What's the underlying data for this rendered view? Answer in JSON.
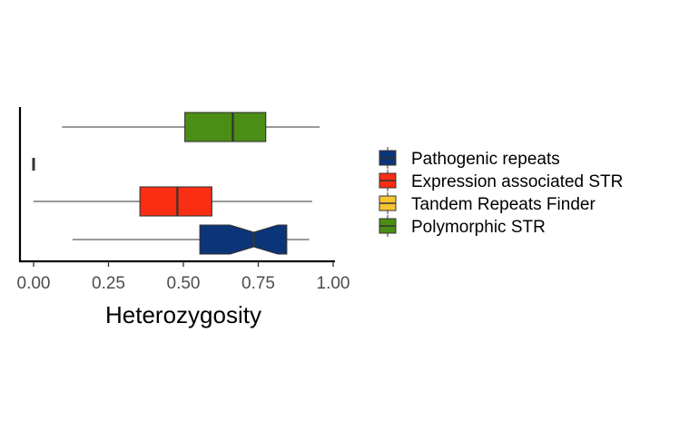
{
  "chart_data": {
    "type": "boxplot",
    "orientation": "horizontal",
    "xlabel": "Heterozygosity",
    "ylabel": "",
    "xlim": [
      0,
      1
    ],
    "x_ticks": [
      0.0,
      0.25,
      0.5,
      0.75,
      1.0
    ],
    "x_tick_labels": [
      "0.00",
      "0.25",
      "0.50",
      "0.75",
      "1.00"
    ],
    "legend_position": "right",
    "grid": false,
    "categories": [
      "Pathogenic repeats",
      "Expression associated STR",
      "Tandem Repeats Finder",
      "Polymorphic STR"
    ],
    "series": [
      {
        "name": "Pathogenic repeats",
        "color": "#0b3578",
        "min": 0.13,
        "q1": 0.555,
        "median": 0.735,
        "q3": 0.845,
        "max": 0.92,
        "notch_low": 0.655,
        "notch_high": 0.815
      },
      {
        "name": "Expression associated STR",
        "color": "#fb2d12",
        "min": 0.0,
        "q1": 0.355,
        "median": 0.48,
        "q3": 0.595,
        "max": 0.93
      },
      {
        "name": "Tandem Repeats Finder",
        "color": "#f7c530",
        "min": 0.0,
        "q1": 0.0,
        "median": 0.0,
        "q3": 0.0,
        "max": 0.0
      },
      {
        "name": "Polymorphic STR",
        "color": "#4a8e15",
        "min": 0.095,
        "q1": 0.505,
        "median": 0.665,
        "q3": 0.775,
        "max": 0.955
      }
    ]
  }
}
